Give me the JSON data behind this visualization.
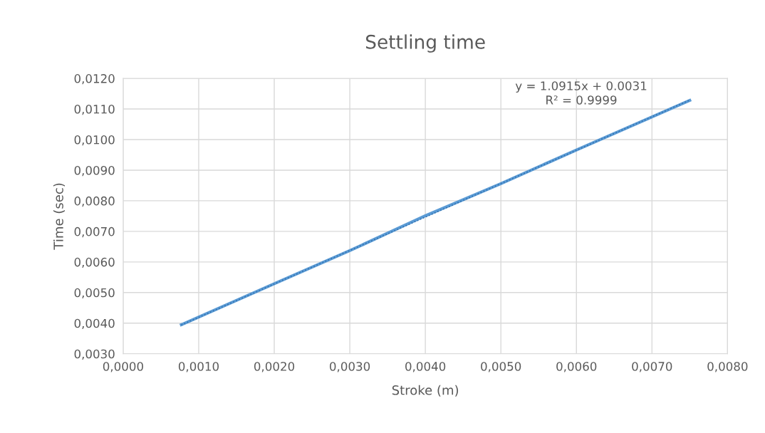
{
  "chart_data": {
    "type": "line",
    "title": "Settling time",
    "xlabel": "Stroke (m)",
    "ylabel": "Time (sec)",
    "series": [
      {
        "color": "#5b9bd5",
        "x": [
          0.00077,
          0.002,
          0.003,
          0.004,
          0.005,
          0.006,
          0.0075
        ],
        "values": [
          0.00395,
          0.00529,
          0.00637,
          0.00751,
          0.00856,
          0.00966,
          0.01128
        ]
      },
      {
        "type": "line",
        "line_style": "dotted",
        "color": "#2f6fad",
        "x": [
          0.00077,
          0.0075
        ],
        "values": [
          0.00394,
          0.01129
        ]
      }
    ],
    "annotations": [
      "y = 1.0915x + 0.0031\nR² = 0.9999"
    ],
    "xlim": [
      0,
      0.008
    ],
    "ylim": [
      0.003,
      0.012
    ],
    "xticks": [
      {
        "value": 0,
        "label": "0,0000"
      },
      {
        "value": 0.001,
        "label": "0,0010"
      },
      {
        "value": 0.002,
        "label": "0,0020"
      },
      {
        "value": 0.003,
        "label": "0,0030"
      },
      {
        "value": 0.004,
        "label": "0,0040"
      },
      {
        "value": 0.005,
        "label": "0,0050"
      },
      {
        "value": 0.006,
        "label": "0,0060"
      },
      {
        "value": 0.007,
        "label": "0,0070"
      },
      {
        "value": 0.008,
        "label": "0,0080"
      }
    ],
    "yticks": [
      {
        "value": 0.003,
        "label": "0,0030"
      },
      {
        "value": 0.004,
        "label": "0,0040"
      },
      {
        "value": 0.005,
        "label": "0,0050"
      },
      {
        "value": 0.006,
        "label": "0,0060"
      },
      {
        "value": 0.007,
        "label": "0,0070"
      },
      {
        "value": 0.008,
        "label": "0,0080"
      },
      {
        "value": 0.009,
        "label": "0,0090"
      },
      {
        "value": 0.01,
        "label": "0,0100"
      },
      {
        "value": 0.011,
        "label": "0,0110"
      },
      {
        "value": 0.012,
        "label": "0,0120"
      }
    ],
    "grid": true,
    "marker": "none",
    "line_style": "solid"
  }
}
